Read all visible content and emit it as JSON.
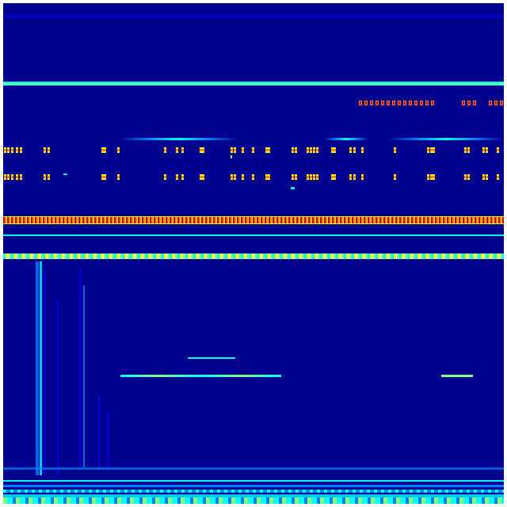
{
  "image": {
    "kind": "spectrogram-heatmap",
    "colormap": "jet",
    "colors": {
      "background": "#00008f",
      "low": "#0000ff",
      "mid_low": "#0080ff",
      "mid": "#00ffff",
      "mid_high": "#80ff80",
      "high": "#ffff00",
      "very_high": "#ff8000",
      "max": "#c00000"
    }
  }
}
